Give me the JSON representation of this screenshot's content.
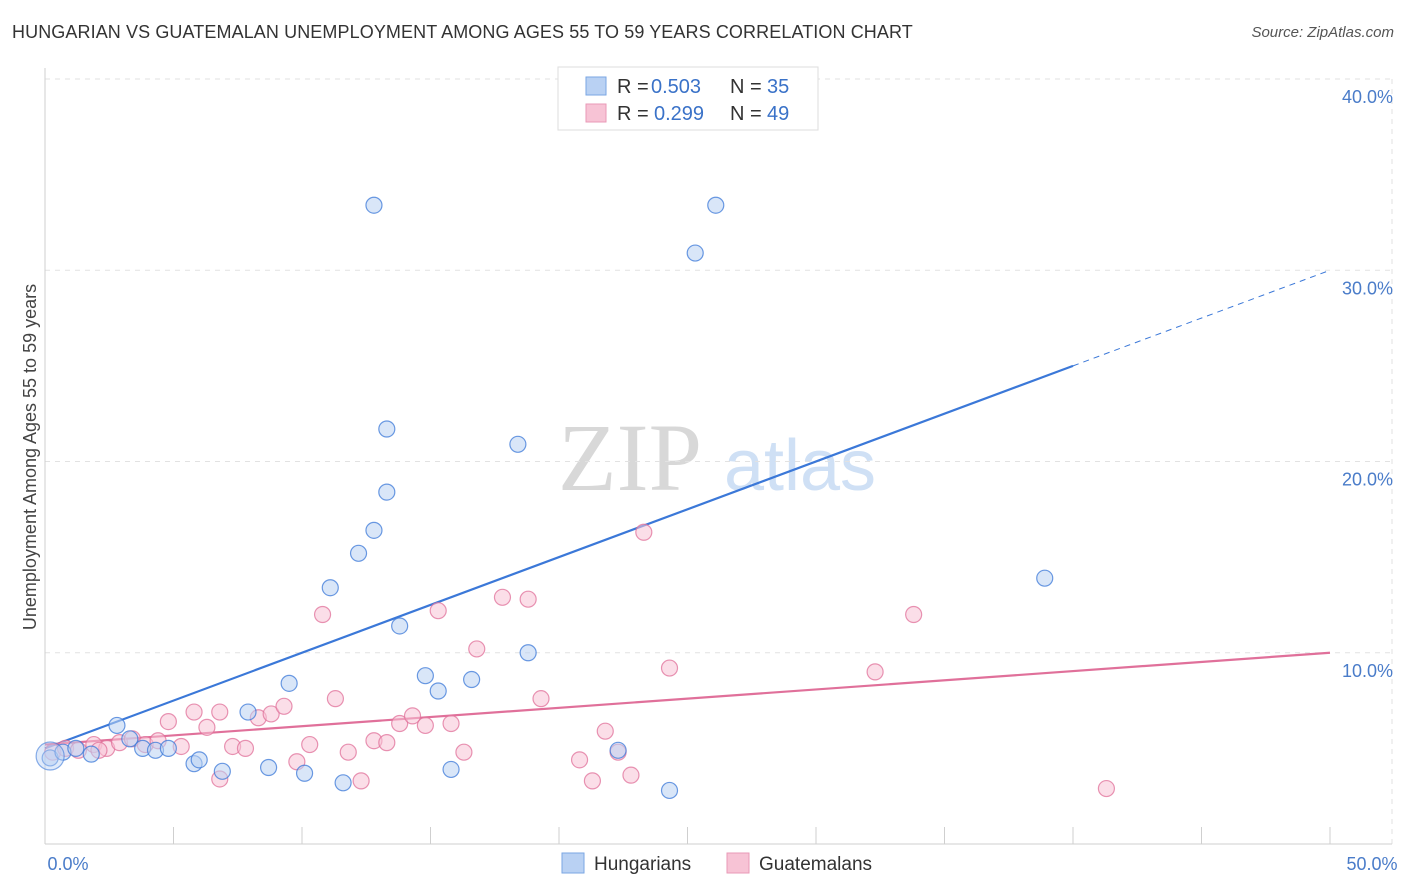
{
  "title": "HUNGARIAN VS GUATEMALAN UNEMPLOYMENT AMONG AGES 55 TO 59 YEARS CORRELATION CHART",
  "source": "Source: ZipAtlas.com",
  "watermark": {
    "zip": "ZIP",
    "atlas": "atlas"
  },
  "colors": {
    "blue": "#3b78d8",
    "blue_fill": "#b9d1f3",
    "pink": "#e0709a",
    "pink_fill": "#f7c3d5"
  },
  "legend": {
    "rows": [
      {
        "r_label": "R = ",
        "r_value": "0.503",
        "n_label": "N = ",
        "n_value": "35"
      },
      {
        "r_label": "R = ",
        "r_value": "0.299",
        "n_label": "N = ",
        "n_value": "49"
      }
    ]
  },
  "chart_data": {
    "type": "scatter",
    "title": "HUNGARIAN VS GUATEMALAN UNEMPLOYMENT AMONG AGES 55 TO 59 YEARS CORRELATION CHART",
    "xlabel": "",
    "ylabel": "Unemployment Among Ages 55 to 59 years",
    "xlim": [
      0,
      50
    ],
    "ylim": [
      0,
      40
    ],
    "x_tick_labels": [
      "0.0%",
      "50.0%"
    ],
    "y_ticks": [
      10,
      20,
      30,
      40
    ],
    "y_tick_labels": [
      "10.0%",
      "20.0%",
      "30.0%",
      "40.0%"
    ],
    "series": [
      {
        "name": "Hungarians",
        "r": 0.503,
        "n": 35,
        "trend": {
          "x0": 0,
          "y0": 5.0,
          "x1": 40,
          "y1": 25.0,
          "dash_to_x": 50,
          "dash_to_y": 30.0
        },
        "points": [
          [
            0.2,
            4.5
          ],
          [
            0.7,
            4.8
          ],
          [
            1.2,
            5.0
          ],
          [
            1.8,
            4.7
          ],
          [
            2.8,
            6.2
          ],
          [
            3.3,
            5.5
          ],
          [
            3.8,
            5.0
          ],
          [
            4.3,
            4.9
          ],
          [
            4.8,
            5.0
          ],
          [
            5.8,
            4.2
          ],
          [
            6.0,
            4.4
          ],
          [
            6.9,
            3.8
          ],
          [
            7.9,
            6.9
          ],
          [
            8.7,
            4.0
          ],
          [
            9.5,
            8.4
          ],
          [
            10.1,
            3.7
          ],
          [
            11.1,
            13.4
          ],
          [
            11.6,
            3.2
          ],
          [
            12.2,
            15.2
          ],
          [
            12.8,
            16.4
          ],
          [
            13.3,
            18.4
          ],
          [
            13.8,
            11.4
          ],
          [
            14.8,
            8.8
          ],
          [
            15.3,
            8.0
          ],
          [
            15.8,
            3.9
          ],
          [
            12.8,
            33.4
          ],
          [
            13.3,
            21.7
          ],
          [
            16.6,
            8.6
          ],
          [
            18.4,
            20.9
          ],
          [
            18.8,
            10.0
          ],
          [
            22.3,
            4.9
          ],
          [
            24.3,
            2.8
          ],
          [
            25.3,
            30.9
          ],
          [
            26.1,
            33.4
          ],
          [
            38.9,
            13.9
          ]
        ]
      },
      {
        "name": "Guatemalans",
        "r": 0.299,
        "n": 49,
        "trend": {
          "x0": 0,
          "y0": 5.2,
          "x1": 50,
          "y1": 10.0
        },
        "points": [
          [
            0.3,
            4.8
          ],
          [
            0.8,
            5.0
          ],
          [
            1.3,
            4.9
          ],
          [
            1.9,
            5.2
          ],
          [
            2.4,
            5.0
          ],
          [
            2.9,
            5.3
          ],
          [
            3.4,
            5.5
          ],
          [
            3.9,
            5.2
          ],
          [
            4.4,
            5.4
          ],
          [
            4.8,
            6.4
          ],
          [
            5.3,
            5.1
          ],
          [
            5.8,
            6.9
          ],
          [
            6.3,
            6.1
          ],
          [
            6.8,
            6.9
          ],
          [
            6.8,
            3.4
          ],
          [
            7.3,
            5.1
          ],
          [
            7.8,
            5.0
          ],
          [
            8.3,
            6.6
          ],
          [
            8.8,
            6.8
          ],
          [
            9.3,
            7.2
          ],
          [
            9.8,
            4.3
          ],
          [
            10.3,
            5.2
          ],
          [
            10.8,
            12.0
          ],
          [
            11.3,
            7.6
          ],
          [
            11.8,
            4.8
          ],
          [
            12.3,
            3.3
          ],
          [
            12.8,
            5.4
          ],
          [
            13.3,
            5.3
          ],
          [
            13.8,
            6.3
          ],
          [
            14.3,
            6.7
          ],
          [
            14.8,
            6.2
          ],
          [
            15.3,
            12.2
          ],
          [
            15.8,
            6.3
          ],
          [
            16.3,
            4.8
          ],
          [
            16.8,
            10.2
          ],
          [
            17.8,
            12.9
          ],
          [
            18.8,
            12.8
          ],
          [
            19.3,
            7.6
          ],
          [
            20.8,
            4.4
          ],
          [
            21.3,
            3.3
          ],
          [
            21.8,
            5.9
          ],
          [
            22.3,
            4.8
          ],
          [
            22.8,
            3.6
          ],
          [
            23.3,
            16.3
          ],
          [
            24.3,
            9.2
          ],
          [
            32.3,
            9.0
          ],
          [
            33.8,
            12.0
          ],
          [
            41.3,
            2.9
          ],
          [
            2.1,
            4.9
          ]
        ]
      }
    ]
  }
}
